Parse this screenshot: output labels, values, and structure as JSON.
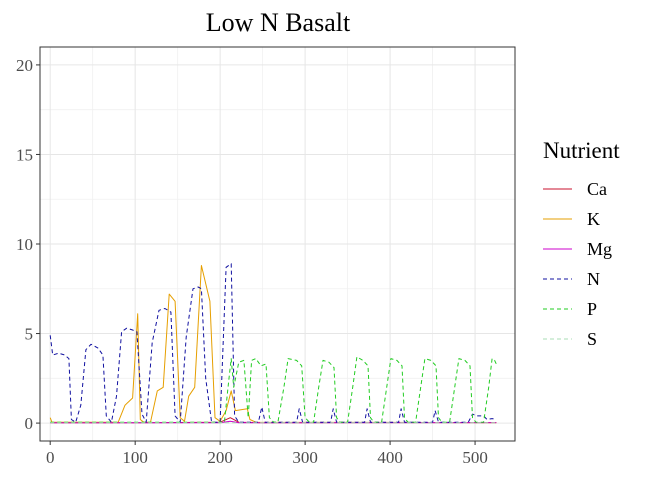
{
  "chart_data": {
    "type": "line",
    "title": "Low N Basalt",
    "xlabel": "",
    "ylabel": "",
    "xlim": [
      -12,
      547
    ],
    "ylim": [
      -1,
      21
    ],
    "x_ticks": [
      0,
      100,
      200,
      300,
      400,
      500
    ],
    "y_ticks": [
      0,
      5,
      10,
      15,
      20
    ],
    "grid": true,
    "legend": {
      "title": "Nutrient",
      "position": "right"
    },
    "series": [
      {
        "name": "Ca",
        "color": "#C8102E",
        "dash": "solid",
        "points": [
          [
            0,
            0.02
          ],
          [
            100,
            0.02
          ],
          [
            200,
            0.05
          ],
          [
            212,
            0.3
          ],
          [
            222,
            0.05
          ],
          [
            250,
            0.02
          ],
          [
            525,
            0.03
          ]
        ]
      },
      {
        "name": "K",
        "color": "#E69F00",
        "dash": "solid",
        "points": [
          [
            0,
            0.3
          ],
          [
            2,
            0.05
          ],
          [
            80,
            0.05
          ],
          [
            88,
            1.0
          ],
          [
            97,
            1.4
          ],
          [
            103,
            6.1
          ],
          [
            106,
            0.2
          ],
          [
            110,
            0.05
          ],
          [
            118,
            0.05
          ],
          [
            126,
            1.8
          ],
          [
            133,
            2.0
          ],
          [
            140,
            7.2
          ],
          [
            147,
            6.8
          ],
          [
            153,
            0.3
          ],
          [
            158,
            0.1
          ],
          [
            163,
            1.5
          ],
          [
            170,
            2.0
          ],
          [
            178,
            8.8
          ],
          [
            188,
            6.8
          ],
          [
            194,
            0.3
          ],
          [
            200,
            0.1
          ],
          [
            207,
            0.7
          ],
          [
            213,
            1.8
          ],
          [
            218,
            0.7
          ],
          [
            232,
            0.8
          ],
          [
            235,
            0.2
          ],
          [
            242,
            0.05
          ],
          [
            525,
            0.03
          ]
        ]
      },
      {
        "name": "Mg",
        "color": "#CC00CC",
        "dash": "solid",
        "points": [
          [
            0,
            0.02
          ],
          [
            200,
            0.02
          ],
          [
            212,
            0.1
          ],
          [
            222,
            0.02
          ],
          [
            525,
            0.03
          ]
        ]
      },
      {
        "name": "N",
        "color": "#1010A0",
        "dash": "dashed",
        "points": [
          [
            0,
            4.9
          ],
          [
            3,
            3.8
          ],
          [
            10,
            3.9
          ],
          [
            17,
            3.8
          ],
          [
            22,
            3.6
          ],
          [
            25,
            0.2
          ],
          [
            30,
            0.05
          ],
          [
            36,
            1.0
          ],
          [
            42,
            4.1
          ],
          [
            48,
            4.4
          ],
          [
            56,
            4.2
          ],
          [
            62,
            3.8
          ],
          [
            66,
            0.4
          ],
          [
            72,
            0.05
          ],
          [
            78,
            1.5
          ],
          [
            84,
            5.1
          ],
          [
            90,
            5.3
          ],
          [
            97,
            5.2
          ],
          [
            102,
            5.1
          ],
          [
            108,
            0.5
          ],
          [
            113,
            0.05
          ],
          [
            120,
            4.5
          ],
          [
            128,
            6.3
          ],
          [
            135,
            6.4
          ],
          [
            142,
            6.2
          ],
          [
            147,
            0.4
          ],
          [
            153,
            0.05
          ],
          [
            160,
            4.8
          ],
          [
            168,
            7.5
          ],
          [
            174,
            7.6
          ],
          [
            178,
            7.5
          ],
          [
            183,
            2.5
          ],
          [
            190,
            0.05
          ],
          [
            200,
            0.05
          ],
          [
            207,
            8.7
          ],
          [
            213,
            8.9
          ],
          [
            217,
            0.4
          ],
          [
            222,
            0.05
          ],
          [
            245,
            0.05
          ],
          [
            249,
            0.9
          ],
          [
            253,
            0.05
          ],
          [
            290,
            0.05
          ],
          [
            293,
            0.8
          ],
          [
            297,
            0.05
          ],
          [
            330,
            0.05
          ],
          [
            333,
            0.8
          ],
          [
            337,
            0.05
          ],
          [
            370,
            0.05
          ],
          [
            373,
            0.8
          ],
          [
            377,
            0.05
          ],
          [
            410,
            0.05
          ],
          [
            413,
            0.8
          ],
          [
            417,
            0.05
          ],
          [
            450,
            0.05
          ],
          [
            453,
            0.7
          ],
          [
            457,
            0.05
          ],
          [
            492,
            0.05
          ],
          [
            497,
            0.5
          ],
          [
            502,
            0.4
          ],
          [
            510,
            0.4
          ],
          [
            514,
            0.2
          ],
          [
            520,
            0.25
          ],
          [
            525,
            0.2
          ]
        ]
      },
      {
        "name": "P",
        "color": "#22CC22",
        "dash": "dashed",
        "points": [
          [
            0,
            0.05
          ],
          [
            205,
            0.05
          ],
          [
            210,
            2.3
          ],
          [
            213,
            3.6
          ],
          [
            216,
            2.0
          ],
          [
            222,
            3.4
          ],
          [
            228,
            3.5
          ],
          [
            233,
            0.3
          ],
          [
            237,
            3.5
          ],
          [
            242,
            3.6
          ],
          [
            248,
            3.2
          ],
          [
            254,
            3.3
          ],
          [
            258,
            0.3
          ],
          [
            263,
            0.05
          ],
          [
            268,
            0.05
          ],
          [
            275,
            2.0
          ],
          [
            280,
            3.6
          ],
          [
            290,
            3.5
          ],
          [
            296,
            3.2
          ],
          [
            300,
            0.3
          ],
          [
            305,
            0.05
          ],
          [
            310,
            0.05
          ],
          [
            316,
            2.0
          ],
          [
            321,
            3.5
          ],
          [
            328,
            3.4
          ],
          [
            334,
            3.1
          ],
          [
            337,
            0.3
          ],
          [
            341,
            0.05
          ],
          [
            350,
            0.05
          ],
          [
            356,
            2.0
          ],
          [
            361,
            3.7
          ],
          [
            368,
            3.5
          ],
          [
            374,
            3.2
          ],
          [
            377,
            0.3
          ],
          [
            381,
            0.05
          ],
          [
            390,
            0.05
          ],
          [
            396,
            2.0
          ],
          [
            401,
            3.6
          ],
          [
            408,
            3.5
          ],
          [
            414,
            3.2
          ],
          [
            417,
            0.3
          ],
          [
            421,
            0.05
          ],
          [
            430,
            0.05
          ],
          [
            436,
            2.0
          ],
          [
            441,
            3.6
          ],
          [
            448,
            3.5
          ],
          [
            454,
            3.2
          ],
          [
            457,
            0.3
          ],
          [
            461,
            0.05
          ],
          [
            470,
            0.05
          ],
          [
            476,
            2.0
          ],
          [
            481,
            3.6
          ],
          [
            488,
            3.5
          ],
          [
            494,
            3.2
          ],
          [
            497,
            0.3
          ],
          [
            501,
            0.05
          ],
          [
            510,
            0.05
          ],
          [
            516,
            2.0
          ],
          [
            520,
            3.6
          ],
          [
            523,
            3.5
          ],
          [
            525,
            3.3
          ]
        ]
      },
      {
        "name": "S",
        "color": "#A8DDB5",
        "dash": "dashed",
        "points": [
          [
            0,
            0.02
          ],
          [
            525,
            0.02
          ]
        ]
      }
    ]
  }
}
